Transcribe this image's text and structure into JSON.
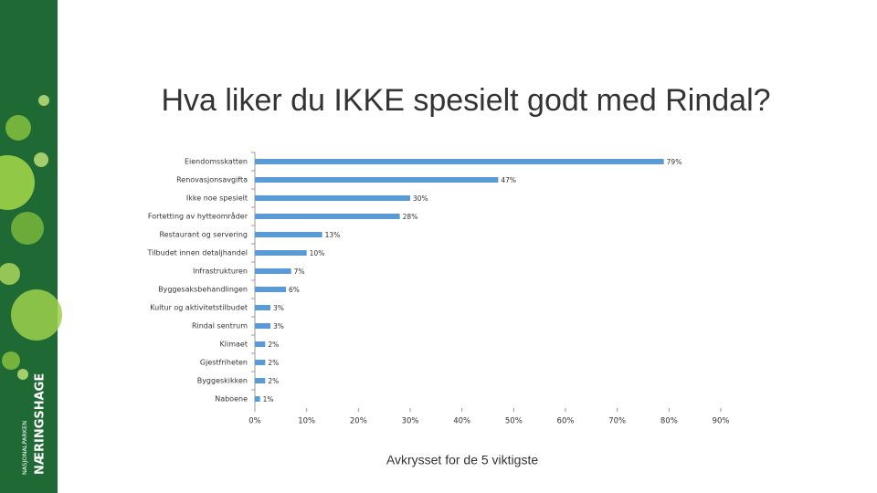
{
  "brand": {
    "name": "NÆRINGSHAGE",
    "subtitle": "NASJONALPARKEN"
  },
  "chart_data": {
    "type": "barh",
    "title": "Hva liker du IKKE spesielt godt med Rindal?",
    "x_label": "Avkrysset for de 5 viktigste",
    "categories": [
      "Eiendomsskatten",
      "Renovasjonsavgifta",
      "Ikke noe spesielt",
      "Fortetting av hytteområder",
      "Restaurant og servering",
      "Tilbudet innen detaljhandel",
      "Infrastrukturen",
      "Byggesaksbehandlingen",
      "Kultur og aktivitetstilbudet",
      "Rindal sentrum",
      "Klimaet",
      "Gjestfriheten",
      "Byggeskikken",
      "Naboene"
    ],
    "values": [
      79,
      47,
      30,
      28,
      13,
      10,
      7,
      6,
      3,
      3,
      2,
      2,
      2,
      1
    ],
    "value_labels": [
      "79%",
      "47%",
      "30%",
      "28%",
      "13%",
      "10%",
      "7%",
      "6%",
      "3%",
      "3%",
      "2%",
      "2%",
      "2%",
      "1%"
    ],
    "color": "#5b9bd5",
    "xlim": [
      0,
      90
    ],
    "xticks": [
      {
        "value": 0,
        "label": "0%"
      },
      {
        "value": 10,
        "label": "10%"
      },
      {
        "value": 20,
        "label": "20%"
      },
      {
        "value": 30,
        "label": "30%"
      },
      {
        "value": 40,
        "label": "40%"
      },
      {
        "value": 50,
        "label": "50%"
      },
      {
        "value": 60,
        "label": "60%"
      },
      {
        "value": 70,
        "label": "70%"
      },
      {
        "value": 80,
        "label": "80%"
      },
      {
        "value": 90,
        "label": "90%"
      }
    ]
  }
}
